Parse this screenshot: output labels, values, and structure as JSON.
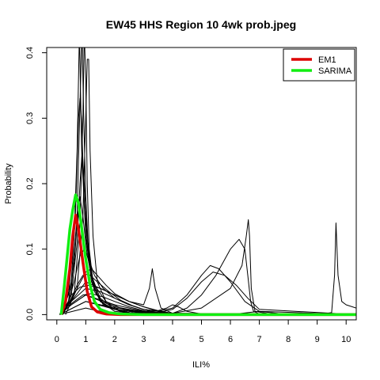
{
  "chart_data": {
    "type": "line",
    "title": "EW45 HHS Region 10 4wk prob.jpeg",
    "xlabel": "ILI%",
    "ylabel": "Probability",
    "xlim": [
      -0.35,
      10.35
    ],
    "ylim": [
      -0.008,
      0.408
    ],
    "xticks": [
      "0",
      "1",
      "2",
      "3",
      "4",
      "5",
      "6",
      "7",
      "8",
      "9",
      "10"
    ],
    "yticks": [
      "0.0",
      "0.1",
      "0.2",
      "0.3",
      "0.4"
    ],
    "legend": {
      "position": "top-right",
      "entries": [
        "EM1",
        "SARIMA"
      ]
    },
    "colors": {
      "ensemble": "#000000",
      "EM1": "#dd0000",
      "SARIMA": "#11ee11"
    },
    "series": [
      {
        "name": "EM1",
        "color": "#dd0000",
        "x": [
          0.15,
          0.3,
          0.45,
          0.55,
          0.65,
          0.75,
          0.9,
          1.05,
          1.2,
          1.4,
          1.7,
          2.2,
          3,
          5,
          8,
          10.35
        ],
        "y": [
          0,
          0.02,
          0.07,
          0.12,
          0.152,
          0.13,
          0.08,
          0.035,
          0.012,
          0.004,
          0.001,
          0,
          0,
          0,
          0,
          0
        ]
      },
      {
        "name": "SARIMA",
        "color": "#11ee11",
        "x": [
          0.15,
          0.25,
          0.35,
          0.45,
          0.55,
          0.65,
          0.75,
          0.85,
          1,
          1.15,
          1.3,
          1.5,
          1.8,
          2.2,
          3,
          5,
          8,
          10.35
        ],
        "y": [
          0,
          0.04,
          0.085,
          0.13,
          0.16,
          0.183,
          0.17,
          0.135,
          0.085,
          0.045,
          0.02,
          0.008,
          0.003,
          0.001,
          0,
          0,
          0,
          0
        ]
      },
      {
        "name": "",
        "color": "#000000",
        "x": [
          0.1,
          0.4,
          0.6,
          0.7,
          0.78,
          0.86,
          1,
          1.2,
          1.5,
          2,
          3,
          4,
          6,
          10.35
        ],
        "y": [
          0,
          0.03,
          0.12,
          0.25,
          0.43,
          0.25,
          0.12,
          0.05,
          0.02,
          0.008,
          0.002,
          0,
          0,
          0
        ]
      },
      {
        "name": "",
        "color": "#000000",
        "x": [
          0.1,
          0.5,
          0.7,
          0.8,
          0.87,
          0.93,
          1,
          1.1,
          1.3,
          1.6,
          2.2,
          3,
          4,
          10.35
        ],
        "y": [
          0,
          0.04,
          0.15,
          0.32,
          0.43,
          0.3,
          0.18,
          0.09,
          0.04,
          0.015,
          0.005,
          0,
          0,
          0
        ]
      },
      {
        "name": "",
        "color": "#000000",
        "x": [
          0.2,
          0.6,
          0.8,
          0.9,
          0.95,
          1,
          1.05,
          1.12,
          1.25,
          1.5,
          2,
          3,
          4,
          10.35
        ],
        "y": [
          0,
          0.03,
          0.14,
          0.3,
          0.43,
          0.36,
          0.2,
          0.1,
          0.05,
          0.02,
          0.005,
          0,
          0,
          0
        ]
      },
      {
        "name": "",
        "color": "#000000",
        "x": [
          0.3,
          0.7,
          0.9,
          1,
          1.05,
          1.1,
          1.15,
          1.25,
          1.4,
          1.7,
          2.2,
          3,
          4,
          10.35
        ],
        "y": [
          0,
          0.04,
          0.15,
          0.3,
          0.39,
          0.39,
          0.25,
          0.12,
          0.05,
          0.02,
          0.005,
          0,
          0,
          0
        ]
      },
      {
        "name": "",
        "color": "#000000",
        "x": [
          0.2,
          0.5,
          0.65,
          0.75,
          0.8,
          0.85,
          0.95,
          1.1,
          1.3,
          1.7,
          2.5,
          3.5,
          10.35
        ],
        "y": [
          0,
          0.05,
          0.16,
          0.3,
          0.33,
          0.3,
          0.17,
          0.08,
          0.035,
          0.012,
          0.003,
          0,
          0
        ]
      },
      {
        "name": "",
        "color": "#000000",
        "x": [
          0.2,
          0.5,
          0.7,
          0.8,
          0.88,
          0.95,
          1.05,
          1.2,
          1.5,
          2,
          3,
          4,
          10.35
        ],
        "y": [
          0,
          0.03,
          0.11,
          0.2,
          0.25,
          0.2,
          0.12,
          0.06,
          0.025,
          0.008,
          0.002,
          0,
          0
        ]
      },
      {
        "name": "",
        "color": "#000000",
        "x": [
          0.1,
          0.4,
          0.6,
          0.72,
          0.8,
          0.9,
          1.05,
          1.3,
          1.7,
          2.3,
          3.2,
          4,
          10.35
        ],
        "y": [
          0,
          0.02,
          0.08,
          0.15,
          0.18,
          0.15,
          0.09,
          0.045,
          0.02,
          0.008,
          0.002,
          0,
          0
        ]
      },
      {
        "name": "",
        "color": "#000000",
        "x": [
          0.1,
          0.4,
          0.6,
          0.8,
          0.95,
          1.1,
          1.3,
          1.6,
          2,
          2.5,
          3,
          4,
          10.35
        ],
        "y": [
          0,
          0.02,
          0.05,
          0.09,
          0.1,
          0.085,
          0.06,
          0.04,
          0.025,
          0.015,
          0.008,
          0.002,
          0
        ]
      },
      {
        "name": "",
        "color": "#000000",
        "x": [
          0.1,
          0.4,
          0.7,
          1,
          1.2,
          1.4,
          1.7,
          2,
          2.5,
          3,
          3.5,
          4,
          10.35
        ],
        "y": [
          0,
          0.015,
          0.04,
          0.065,
          0.07,
          0.06,
          0.045,
          0.032,
          0.02,
          0.012,
          0.006,
          0.002,
          0
        ]
      },
      {
        "name": "",
        "color": "#000000",
        "x": [
          0.1,
          0.3,
          0.5,
          0.7,
          0.9,
          1.1,
          1.4,
          1.8,
          2.2,
          2.6,
          3,
          3.4,
          4,
          10.35
        ],
        "y": [
          0,
          0.01,
          0.025,
          0.045,
          0.06,
          0.062,
          0.05,
          0.035,
          0.022,
          0.014,
          0.008,
          0.004,
          0.001,
          0
        ]
      },
      {
        "name": "",
        "color": "#000000",
        "x": [
          0.1,
          0.3,
          0.5,
          0.8,
          1.1,
          1.5,
          2,
          2.5,
          3,
          3.5,
          4,
          10.35
        ],
        "y": [
          0,
          0.01,
          0.03,
          0.042,
          0.045,
          0.04,
          0.03,
          0.02,
          0.012,
          0.005,
          0.001,
          0
        ]
      },
      {
        "name": "",
        "color": "#000000",
        "x": [
          0.1,
          0.3,
          0.6,
          0.9,
          1.2,
          1.6,
          2,
          2.5,
          3,
          3.5,
          10.35
        ],
        "y": [
          0,
          0.01,
          0.02,
          0.03,
          0.032,
          0.027,
          0.02,
          0.012,
          0.006,
          0.002,
          0
        ]
      },
      {
        "name": "",
        "color": "#000000",
        "x": [
          0.1,
          0.5,
          1,
          1.5,
          2,
          2.5,
          3,
          3.2,
          3.3,
          3.4,
          3.6,
          4,
          10.35
        ],
        "y": [
          0,
          0.02,
          0.05,
          0.04,
          0.03,
          0.02,
          0.015,
          0.04,
          0.07,
          0.04,
          0.01,
          0.002,
          0
        ]
      },
      {
        "name": "",
        "color": "#000000",
        "x": [
          0.1,
          0.5,
          1,
          1.5,
          2,
          2.5,
          3,
          3.5,
          4,
          4.5,
          5,
          5.3,
          5.6,
          6,
          6.5,
          7,
          10.35
        ],
        "y": [
          0,
          0.02,
          0.04,
          0.035,
          0.025,
          0.015,
          0.008,
          0.005,
          0.01,
          0.03,
          0.06,
          0.075,
          0.07,
          0.05,
          0.02,
          0.005,
          0
        ]
      },
      {
        "name": "",
        "color": "#000000",
        "x": [
          0.1,
          0.5,
          1,
          2,
          3,
          3.5,
          4,
          4.5,
          5,
          5.4,
          5.8,
          6.2,
          6.6,
          7,
          10.35
        ],
        "y": [
          0,
          0.015,
          0.03,
          0.015,
          0.005,
          0.003,
          0.008,
          0.025,
          0.05,
          0.065,
          0.06,
          0.045,
          0.025,
          0.008,
          0
        ]
      },
      {
        "name": "",
        "color": "#000000",
        "x": [
          0.1,
          0.5,
          1,
          2,
          3,
          4,
          4.5,
          5,
          5.5,
          6,
          6.3,
          6.5,
          6.6,
          6.7,
          6.8,
          7,
          10.35
        ],
        "y": [
          0,
          0.015,
          0.03,
          0.012,
          0.004,
          0.002,
          0.01,
          0.03,
          0.06,
          0.1,
          0.115,
          0.1,
          0.06,
          0.02,
          0.005,
          0.001,
          0
        ]
      },
      {
        "name": "",
        "color": "#000000",
        "x": [
          0.1,
          1,
          2,
          3,
          4,
          5,
          6,
          6.4,
          6.55,
          6.62,
          6.66,
          6.72,
          6.85,
          7.5,
          10.35
        ],
        "y": [
          0,
          0.02,
          0.008,
          0.003,
          0.002,
          0.01,
          0.04,
          0.075,
          0.12,
          0.145,
          0.12,
          0.04,
          0.005,
          0,
          0
        ]
      },
      {
        "name": "",
        "color": "#000000",
        "x": [
          0.1,
          1,
          2,
          3,
          3.5,
          3.8,
          4,
          4.2,
          4.5,
          5,
          10.35
        ],
        "y": [
          0,
          0.02,
          0.01,
          0.005,
          0.006,
          0.01,
          0.015,
          0.012,
          0.005,
          0.001,
          0
        ]
      },
      {
        "name": "",
        "color": "#000000",
        "x": [
          0.1,
          1,
          2,
          6,
          7,
          8,
          9,
          9.5,
          9.6,
          9.65,
          9.72,
          9.85,
          10,
          10.35
        ],
        "y": [
          0,
          0.01,
          0,
          0,
          0.005,
          0,
          0,
          0.003,
          0.06,
          0.14,
          0.06,
          0.02,
          0.015,
          0.01
        ]
      }
    ]
  }
}
